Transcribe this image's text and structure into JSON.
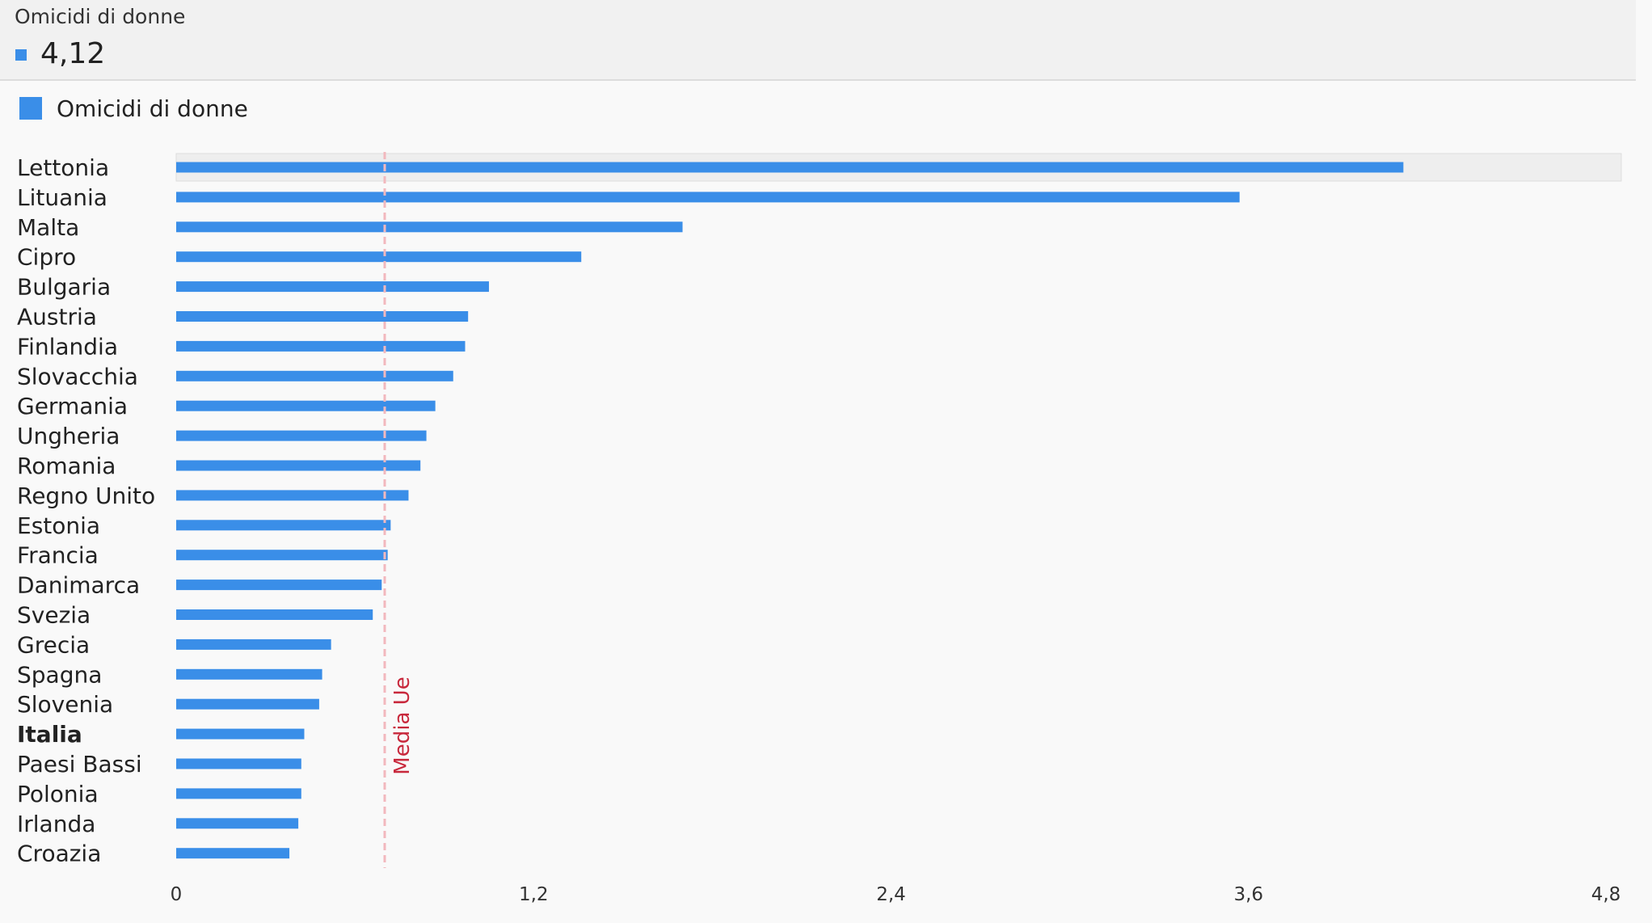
{
  "tooltip": {
    "title": "Omicidi di donne",
    "value": "4,12"
  },
  "legend": {
    "label": "Omicidi di donne"
  },
  "colors": {
    "bar": "#3a8ee8",
    "reference_line": "#f2b8be",
    "reference_label": "#c8283c",
    "highlight_band": "#eeeeee"
  },
  "chart_data": {
    "type": "bar",
    "orientation": "horizontal",
    "series": [
      {
        "name": "Omicidi di donne",
        "values": [
          4.12,
          3.57,
          1.7,
          1.36,
          1.05,
          0.98,
          0.97,
          0.93,
          0.87,
          0.84,
          0.82,
          0.78,
          0.72,
          0.71,
          0.69,
          0.66,
          0.52,
          0.49,
          0.48,
          0.43,
          0.42,
          0.42,
          0.41,
          0.38
        ]
      }
    ],
    "categories": [
      "Lettonia",
      "Lituania",
      "Malta",
      "Cipro",
      "Bulgaria",
      "Austria",
      "Finlandia",
      "Slovacchia",
      "Germania",
      "Ungheria",
      "Romania",
      "Regno Unito",
      "Estonia",
      "Francia",
      "Danimarca",
      "Svezia",
      "Grecia",
      "Spagna",
      "Slovenia",
      "Italia",
      "Paesi Bassi",
      "Polonia",
      "Irlanda",
      "Croazia"
    ],
    "highlighted_category": "Italia",
    "hovered_category": "Lettonia",
    "xlim": [
      0,
      4.8
    ],
    "x_ticks": [
      "0",
      "1,2",
      "2,4",
      "3,6",
      "4,8"
    ],
    "x_tick_values": [
      0,
      1.2,
      2.4,
      3.6,
      4.8
    ],
    "reference_line": {
      "label": "Media Ue",
      "value": 0.7,
      "style": "dashed"
    },
    "grid": false,
    "legend_position": "top-left"
  }
}
